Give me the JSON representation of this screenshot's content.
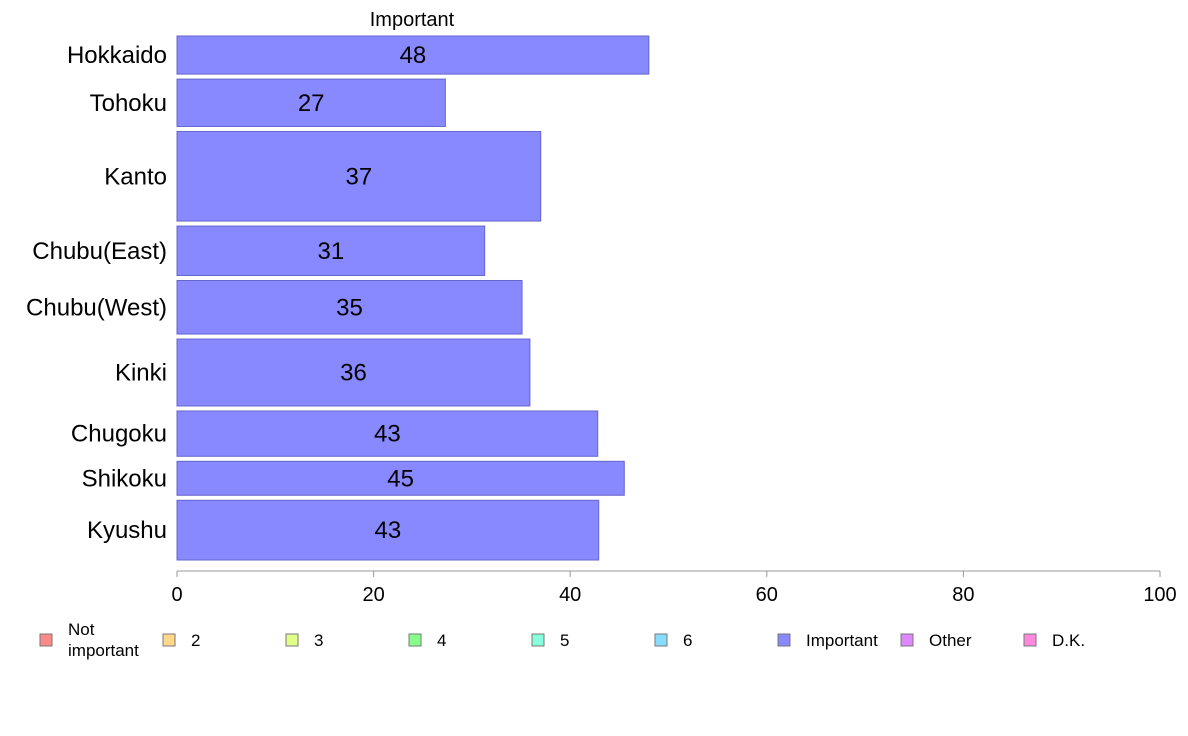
{
  "chart_data": {
    "type": "bar",
    "orientation": "horizontal",
    "title": "",
    "xlabel": "",
    "ylabel": "",
    "xlim": [
      0,
      100
    ],
    "grid": false,
    "legend_position": "bottom",
    "ticks": [
      "0",
      "20",
      "40",
      "60",
      "80",
      "100"
    ],
    "tick_values": [
      0,
      20,
      40,
      60,
      80,
      100
    ],
    "categories": [
      "Hokkaido",
      "Tohoku",
      "Kanto",
      "Chubu(East)",
      "Chubu(West)",
      "Kinki",
      "Chugoku",
      "Shikoku",
      "Kyushu"
    ],
    "category_weights": [
      37,
      46,
      87,
      48,
      52,
      65,
      44,
      33,
      58
    ],
    "series": [
      {
        "name": "Important",
        "color": "#8888ff",
        "values": [
          48,
          27.3,
          37,
          31.3,
          35.1,
          35.9,
          42.8,
          45.5,
          42.9
        ],
        "labels": [
          "48",
          "27",
          "37",
          "31",
          "35",
          "36",
          "43",
          "45",
          "43"
        ]
      }
    ],
    "legend": [
      {
        "label": "Not important",
        "color": "#ff8888"
      },
      {
        "label": "2",
        "color": "#ffd888"
      },
      {
        "label": "3",
        "color": "#e0ff88"
      },
      {
        "label": "4",
        "color": "#88ff88"
      },
      {
        "label": "5",
        "color": "#88ffdd"
      },
      {
        "label": "6",
        "color": "#88ddff"
      },
      {
        "label": "Important",
        "color": "#8888ff"
      },
      {
        "label": "Other",
        "color": "#dd88ff"
      },
      {
        "label": "D.K.",
        "color": "#ff88dd"
      }
    ]
  }
}
